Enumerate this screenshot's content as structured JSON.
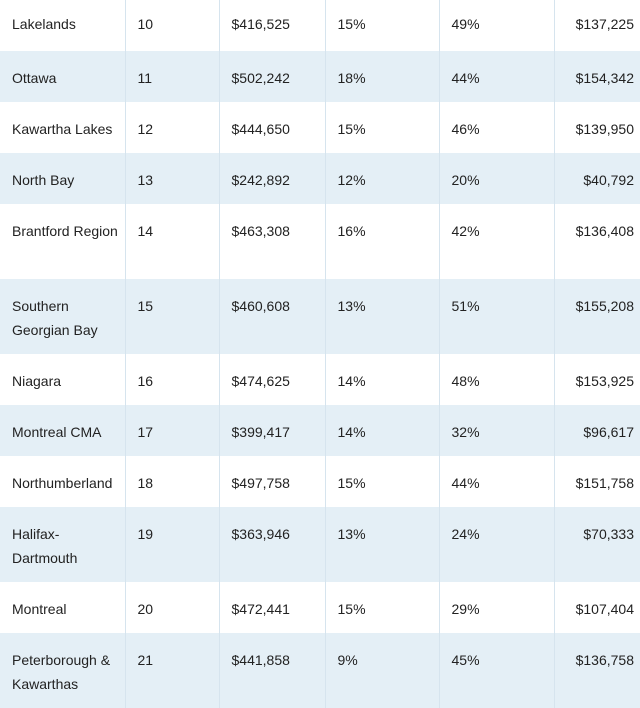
{
  "table": {
    "rows": [
      [
        "Lakelands",
        "10",
        "$416,525",
        "15%",
        "49%",
        "$137,225"
      ],
      [
        "Ottawa",
        "11",
        "$502,242",
        "18%",
        "44%",
        "$154,342"
      ],
      [
        "Kawartha Lakes",
        "12",
        "$444,650",
        "15%",
        "46%",
        "$139,950"
      ],
      [
        "North Bay",
        "13",
        "$242,892",
        "12%",
        "20%",
        "$40,792"
      ],
      [
        "Brantford Region",
        "14",
        "$463,308",
        "16%",
        "42%",
        "$136,408"
      ],
      [
        "Southern Georgian Bay",
        "15",
        "$460,608",
        "13%",
        "51%",
        "$155,208"
      ],
      [
        "Niagara",
        "16",
        "$474,625",
        "14%",
        "48%",
        "$153,925"
      ],
      [
        "Montreal CMA",
        "17",
        "$399,417",
        "14%",
        "32%",
        "$96,617"
      ],
      [
        "Northumberland",
        "18",
        "$497,758",
        "15%",
        "44%",
        "$151,758"
      ],
      [
        "Halifax-Dartmouth",
        "19",
        "$363,946",
        "13%",
        "24%",
        "$70,333"
      ],
      [
        "Montreal",
        "20",
        "$472,441",
        "15%",
        "29%",
        "$107,404"
      ],
      [
        "Peterborough & Kawarthas",
        "21",
        "$441,858",
        "9%",
        "45%",
        "$136,758"
      ]
    ]
  }
}
